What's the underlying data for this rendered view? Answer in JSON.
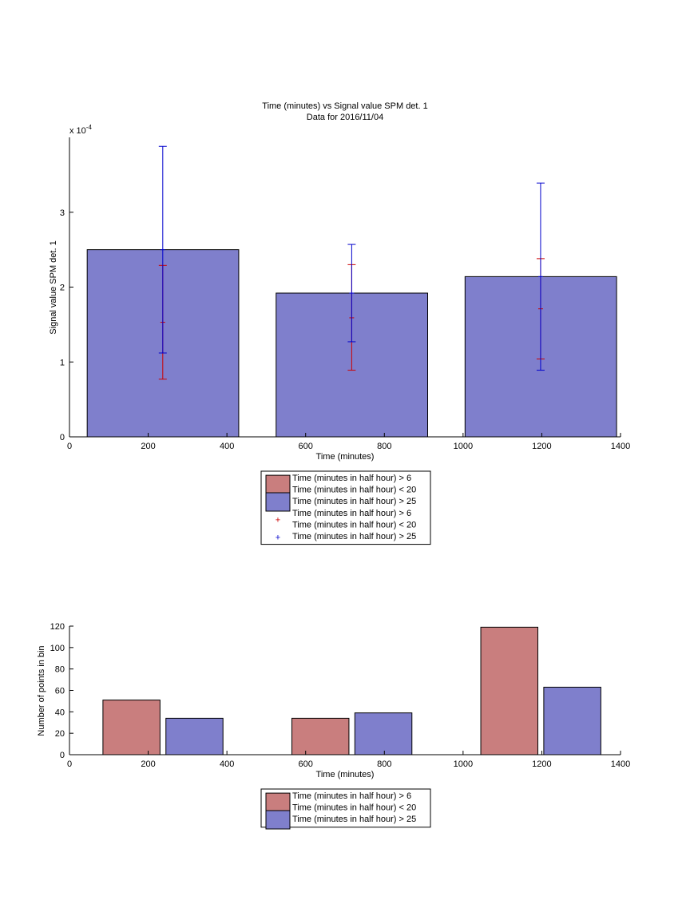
{
  "colors": {
    "red_fill": "#c97e7e",
    "blue_fill": "#7f7fcc",
    "red_err": "#cc0000",
    "blue_err": "#0000cc",
    "axis": "#000000"
  },
  "chart_data": [
    {
      "type": "bar",
      "title": "Time (minutes) vs Signal value SPM det. 1",
      "subtitle": "Data for 2016/11/04",
      "xlabel": "Time (minutes)",
      "ylabel": "Signal value SPM det. 1",
      "y_exponent_label": "x 10",
      "y_exponent": "-4",
      "xlim": [
        0,
        1400
      ],
      "ylim": [
        0,
        4
      ],
      "xticks": [
        "0",
        "200",
        "400",
        "600",
        "800",
        "1000",
        "1200",
        "1400"
      ],
      "yticks": [
        "0",
        "1",
        "2",
        "3"
      ],
      "bars": [
        {
          "series": "Time (minutes in half hour) > 25",
          "x_start": 45,
          "x_end": 430,
          "value": 2.5
        },
        {
          "series": "Time (minutes in half hour) > 25",
          "x_start": 525,
          "x_end": 910,
          "value": 1.92
        },
        {
          "series": "Time (minutes in half hour) > 25",
          "x_start": 1005,
          "x_end": 1390,
          "value": 2.14
        }
      ],
      "errorbars": [
        {
          "series": "Time (minutes in half hour) > 6 Time (minutes in half hour) < 20",
          "x": 237,
          "center": 1.53,
          "low": 0.77,
          "high": 2.29
        },
        {
          "series": "Time (minutes in half hour) > 25",
          "x": 237,
          "center": 2.5,
          "low": 1.12,
          "high": 3.88
        },
        {
          "series": "Time (minutes in half hour) > 6 Time (minutes in half hour) < 20",
          "x": 717,
          "center": 1.59,
          "low": 0.89,
          "high": 2.3
        },
        {
          "series": "Time (minutes in half hour) > 25",
          "x": 717,
          "center": 1.92,
          "low": 1.27,
          "high": 2.57
        },
        {
          "series": "Time (minutes in half hour) > 6 Time (minutes in half hour) < 20",
          "x": 1197,
          "center": 1.71,
          "low": 1.04,
          "high": 2.38
        },
        {
          "series": "Time (minutes in half hour) > 25",
          "x": 1197,
          "center": 2.14,
          "low": 0.89,
          "high": 3.39
        }
      ],
      "legend": {
        "position": "below",
        "entries": [
          {
            "kind": "patch",
            "color": "red",
            "lines": [
              "Time (minutes in half hour) > 6",
              "Time (minutes in half hour) < 20"
            ]
          },
          {
            "kind": "patch",
            "color": "blue",
            "lines": [
              "Time (minutes in half hour) > 25"
            ]
          },
          {
            "kind": "marker",
            "color": "red",
            "lines": [
              "Time (minutes in half hour) > 6",
              "Time (minutes in half hour) < 20"
            ]
          },
          {
            "kind": "marker",
            "color": "blue",
            "lines": [
              "Time (minutes in half hour) > 25"
            ]
          }
        ]
      }
    },
    {
      "type": "bar",
      "title": "",
      "xlabel": "Time (minutes)",
      "ylabel": "Number of points in bin",
      "xlim": [
        0,
        1400
      ],
      "ylim": [
        0,
        120
      ],
      "xticks": [
        "0",
        "200",
        "400",
        "600",
        "800",
        "1000",
        "1200",
        "1400"
      ],
      "yticks": [
        "0",
        "20",
        "40",
        "60",
        "80",
        "100",
        "120"
      ],
      "bars": [
        {
          "series": "Time (minutes in half hour) > 6 Time (minutes in half hour) < 20",
          "x_start": 85,
          "x_end": 230,
          "value": 51
        },
        {
          "series": "Time (minutes in half hour) > 25",
          "x_start": 245,
          "x_end": 390,
          "value": 34
        },
        {
          "series": "Time (minutes in half hour) > 6 Time (minutes in half hour) < 20",
          "x_start": 565,
          "x_end": 710,
          "value": 34
        },
        {
          "series": "Time (minutes in half hour) > 25",
          "x_start": 725,
          "x_end": 870,
          "value": 39
        },
        {
          "series": "Time (minutes in half hour) > 6 Time (minutes in half hour) < 20",
          "x_start": 1045,
          "x_end": 1190,
          "value": 119
        },
        {
          "series": "Time (minutes in half hour) > 25",
          "x_start": 1205,
          "x_end": 1350,
          "value": 63
        }
      ],
      "legend": {
        "position": "below",
        "entries": [
          {
            "kind": "patch",
            "color": "red",
            "lines": [
              "Time (minutes in half hour) > 6",
              "Time (minutes in half hour) < 20"
            ]
          },
          {
            "kind": "patch",
            "color": "blue",
            "lines": [
              "Time (minutes in half hour) > 25"
            ]
          }
        ]
      }
    }
  ]
}
